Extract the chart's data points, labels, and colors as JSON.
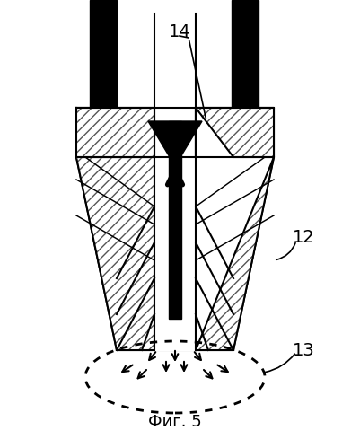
{
  "title": "Фиг. 5",
  "label_14": "14",
  "label_12": "12",
  "label_13": "13",
  "bg_color": "#ffffff",
  "line_color": "#000000",
  "hatch_color": "#555555",
  "figsize": [
    3.91,
    4.99
  ],
  "dpi": 100
}
